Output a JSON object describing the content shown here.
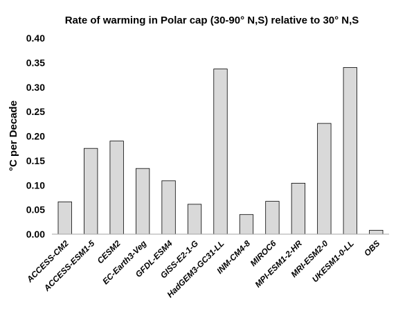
{
  "chart_data": {
    "type": "bar",
    "title": "Rate of warming in Polar cap (30-90° N,S) relative to 30° N,S",
    "xlabel": "",
    "ylabel": "°C per Decade",
    "ylim": [
      0,
      0.4
    ],
    "yticks": [
      0.0,
      0.05,
      0.1,
      0.15,
      0.2,
      0.25,
      0.3,
      0.35,
      0.4
    ],
    "ytick_labels": [
      "0.00",
      "0.05",
      "0.10",
      "0.15",
      "0.20",
      "0.25",
      "0.30",
      "0.35",
      "0.40"
    ],
    "grid": false,
    "legend": "none",
    "categories": [
      "ACCESS-CM2",
      "ACCESS-ESM1-5",
      "CESM2",
      "EC-Earth3-Veg",
      "GFDL-ESM4",
      "GISS-E2-1-G",
      "HadGEM3-GC31-LL",
      "INM-CM4-8",
      "MIROC6",
      "MPI-ESM1-2-HR",
      "MRI-ESM2-0",
      "UKESM1-0-LL",
      "OBS"
    ],
    "values": [
      0.066,
      0.175,
      0.19,
      0.134,
      0.109,
      0.061,
      0.337,
      0.04,
      0.067,
      0.104,
      0.226,
      0.34,
      0.008
    ],
    "colors": {
      "bar_fill": "#d9d9d9",
      "bar_stroke": "#000000",
      "axis": "#a6a6a6",
      "text": "#000000"
    }
  }
}
